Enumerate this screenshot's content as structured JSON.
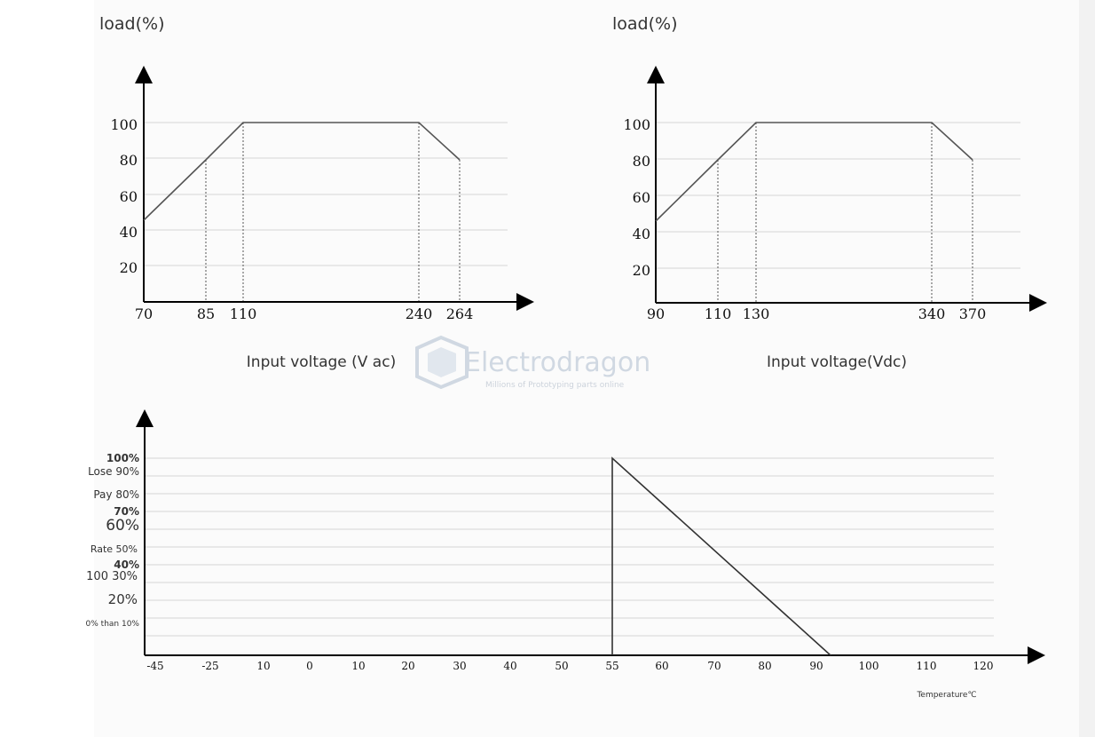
{
  "colors": {
    "line": "#555555",
    "grid": "#d6d6d6",
    "axis": "#000000",
    "watermark": "#c9d3de"
  },
  "watermark": {
    "name": "Electrodragon",
    "tagline": "Millions of Prototyping parts online"
  },
  "chart_data": [
    {
      "type": "line",
      "ylabel": "load(%)",
      "xlabel": "Input voltage (V ac)",
      "yticks": [
        "100",
        "80",
        "60",
        "40",
        "20"
      ],
      "xticks": [
        "70",
        "85",
        "110",
        "240",
        "264"
      ],
      "ylim": [
        0,
        100
      ],
      "series": [
        {
          "x": [
            70,
            85,
            110,
            240,
            264
          ],
          "y": [
            45,
            80,
            100,
            100,
            80
          ]
        }
      ],
      "drop_lines": [
        85,
        110,
        240,
        264
      ],
      "grid": true
    },
    {
      "type": "line",
      "ylabel": "load(%)",
      "xlabel": "Input voltage(Vdc)",
      "yticks": [
        "100",
        "80",
        "60",
        "40",
        "20"
      ],
      "xticks": [
        "90",
        "110",
        "130",
        "340",
        "370"
      ],
      "ylim": [
        0,
        100
      ],
      "series": [
        {
          "x": [
            90,
            110,
            130,
            340,
            370
          ],
          "y": [
            45,
            80,
            100,
            100,
            80
          ]
        }
      ],
      "drop_lines": [
        110,
        130,
        340,
        370
      ],
      "grid": true
    },
    {
      "type": "line",
      "xlabel": "Temperature℃",
      "ylabels": [
        "100%",
        "Lose 90%",
        "Pay 80%",
        "70%",
        "60%",
        "Rate 50%",
        "40%",
        "100 30%",
        "20%",
        "0% than 10%"
      ],
      "xticks": [
        "-45",
        "-25",
        "10",
        "0",
        "10",
        "20",
        "30",
        "40",
        "50",
        "55",
        "60",
        "70",
        "80",
        "90",
        "100",
        "110",
        "120"
      ],
      "ylim": [
        0,
        100
      ],
      "series": [
        {
          "x": [
            55,
            55,
            92
          ],
          "y": [
            0,
            100,
            0
          ]
        }
      ],
      "grid": true
    }
  ]
}
